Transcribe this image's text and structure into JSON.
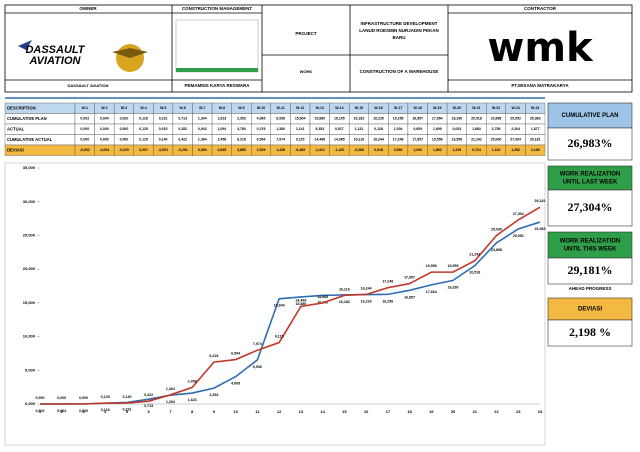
{
  "header": {
    "owner": "OWNER",
    "construction_management": "CONSTRUCTION MANAGEMENT",
    "contractor": "CONTRACTOR",
    "project_label": "PROJECT",
    "project": [
      "INFRASTRUCTURE DEVELOPMENT",
      "LANUD ROESMIN NURJADIN PEKAN",
      "BARU"
    ],
    "work_label": "WORK",
    "work": "CONSTRUCTION OF A WAREHOUSE",
    "owner_logo": [
      "DASSAULT",
      "AVIATION"
    ],
    "contractor_logo": "wmk",
    "owner_name": "DASSAULT AVIATION",
    "cm_name": "PEMAMNIS KARYA RESWARA",
    "contractor_name": "PT.WISANA MATRAKARYA"
  },
  "table": {
    "header": [
      "DESCRIPTION",
      "W-1",
      "W-2",
      "W-3",
      "W-4",
      "W-5",
      "W-6",
      "W-7",
      "W-8",
      "W-9",
      "W-10",
      "W-11",
      "W-12",
      "W-13",
      "W-14",
      "W-15",
      "W-16",
      "W-17",
      "W-18",
      "W-19",
      "W-20",
      "W-21",
      "W-22",
      "W-23",
      "W-24"
    ],
    "rows": [
      [
        "CUMULATIVE PLAN",
        "0,002",
        "0,004",
        "0,020",
        "0,118",
        "0,231",
        "0,713",
        "1,304",
        "1,623",
        "2,353",
        "4,065",
        "6,536",
        "15,604",
        "15,880",
        "16,105",
        "16,182",
        "16,226",
        "16,256",
        "16,857",
        "17,664",
        "18,330",
        "20,518",
        "23,898",
        "25,952",
        "26,983"
      ],
      [
        "ACTUAL",
        "0,000",
        "0,000",
        "0,000",
        "0,125",
        "0,015",
        "0,282",
        "0,942",
        "1,094",
        "3,760",
        "0,376",
        "1,380",
        "1,141",
        "5,353",
        "0,517",
        "1,131",
        "0,128",
        "1,004",
        "0,609",
        "1,699",
        "0,003",
        "1,683",
        "3,758",
        "2,304",
        "1,877"
      ],
      [
        "CUMULATIVE ACTUAL",
        "0,000",
        "0,000",
        "0,000",
        "0,125",
        "0,140",
        "0,422",
        "1,364",
        "2,458",
        "6,218",
        "6,594",
        "7,974",
        "9,115",
        "14,468",
        "14,985",
        "16,116",
        "16,244",
        "17,248",
        "17,857",
        "19,556",
        "19,559",
        "21,242",
        "25,000",
        "27,304",
        "29,181"
      ],
      [
        "DEVIASI",
        "-0,002",
        "-0,004",
        "-0,020",
        "0,007",
        "-0,091",
        "-0,291",
        "0,060",
        "0,835",
        "3,865",
        "2,529",
        "1,438",
        "-6,489",
        "-1,412",
        "-1,120",
        "-0,066",
        "0,018",
        "0,992",
        "1,000",
        "1,892",
        "1,229",
        "0,724",
        "1,102",
        "1,352",
        "2,198"
      ]
    ]
  },
  "summary": {
    "cumulative_plan": {
      "label": [
        "CUMULATIVE PLAN"
      ],
      "value": "26,983%"
    },
    "last_week": {
      "label": [
        "WORK REALIZATION",
        "UNTIL LAST WEEK"
      ],
      "value": "27,304%"
    },
    "this_week": {
      "label": [
        "WORK REALIZATION",
        "UNTIL THIS WEEK"
      ],
      "value": "29,181%",
      "note": "AHEAD PROGRESS"
    },
    "deviasi": {
      "label": [
        "DEVIASI"
      ],
      "value": "2,198 %"
    }
  },
  "chart_data": {
    "type": "line",
    "categories": [
      "1",
      "2",
      "3",
      "4",
      "5",
      "6",
      "7",
      "8",
      "9",
      "10",
      "11",
      "12",
      "13",
      "14",
      "15",
      "16",
      "17",
      "18",
      "19",
      "20",
      "21",
      "22",
      "23",
      "24"
    ],
    "series": [
      {
        "color": "#2e6db4",
        "values": [
          0.002,
          0.004,
          0.02,
          0.118,
          0.231,
          0.713,
          1.304,
          1.623,
          2.353,
          4.065,
          6.536,
          15.604,
          15.88,
          16.105,
          16.182,
          16.226,
          16.256,
          16.857,
          17.664,
          18.33,
          20.518,
          23.898,
          25.952,
          26.983
        ],
        "value_labels": [
          "0,002",
          "0,004",
          "0,020",
          "0,118",
          "0,231",
          "0,713",
          "1,304",
          "1,623",
          "2,353",
          "4,065",
          "6,536",
          "15,604",
          "15,880",
          "16,105",
          "16,182",
          "16,226",
          "16,256",
          "16,857",
          "17,664",
          "18,330",
          "20,518",
          "23,898",
          "25,952",
          "26,983"
        ]
      },
      {
        "color": "#c0392b",
        "values": [
          0,
          0,
          0,
          0.125,
          0.14,
          0.422,
          1.364,
          2.458,
          6.218,
          6.594,
          7.974,
          9.115,
          14.468,
          14.985,
          16.116,
          16.244,
          17.248,
          17.857,
          19.556,
          19.559,
          21.242,
          25.0,
          27.304,
          29.181
        ],
        "value_labels": [
          "0,000",
          "0,000",
          "0,000",
          "0,125",
          "0,140",
          "0,422",
          "1,364",
          "2,458",
          "6,218",
          "6,594",
          "7,974",
          "9,115",
          "14,468",
          "14,985",
          "16,116",
          "16,244",
          "17,248",
          "17,857",
          "19,556",
          "19,559",
          "21,242",
          "25,000",
          "27,304",
          "29,181"
        ]
      }
    ],
    "ylim": [
      0,
      35
    ],
    "yticks": [
      {
        "value": 0,
        "label": "0,000"
      },
      {
        "value": 5,
        "label": "5,000"
      },
      {
        "value": 10,
        "label": "10,000"
      },
      {
        "value": 15,
        "label": "15,000"
      },
      {
        "value": 20,
        "label": "20,000"
      },
      {
        "value": 25,
        "label": "25,000"
      },
      {
        "value": 30,
        "label": "30,000"
      },
      {
        "value": 35,
        "label": "35,000"
      }
    ],
    "grid": false
  }
}
